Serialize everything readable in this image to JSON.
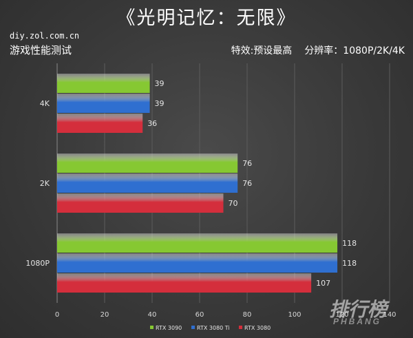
{
  "header": {
    "title": "《光明记忆：无限》",
    "source": "diy.zol.com.cn",
    "subtitle_left": "游戏性能测试",
    "effects": "特效:预设最高",
    "resolution": "分辨率：1080P/2K/4K"
  },
  "watermark": {
    "main": "排行榜",
    "sub": "PHBANG"
  },
  "colors": {
    "RTX 3090": "#86c832",
    "RTX 3080 Ti": "#2f6fd0",
    "RTX 3080": "#d42e3c"
  },
  "chart_data": {
    "type": "bar",
    "orientation": "horizontal",
    "categories": [
      "4K",
      "2K",
      "1080P"
    ],
    "series": [
      {
        "name": "RTX 3090",
        "values": [
          39,
          76,
          118
        ]
      },
      {
        "name": "RTX 3080 Ti",
        "values": [
          39,
          76,
          118
        ]
      },
      {
        "name": "RTX 3080",
        "values": [
          36,
          70,
          107
        ]
      }
    ],
    "xlim": [
      0,
      140
    ],
    "xticks": [
      0,
      20,
      40,
      60,
      80,
      100,
      120,
      140
    ],
    "grid": "vertical",
    "legend_position": "bottom"
  }
}
